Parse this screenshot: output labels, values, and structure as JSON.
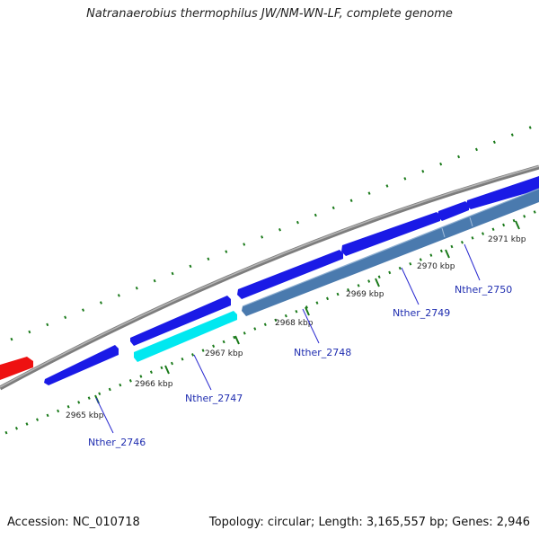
{
  "title": "Natranaerobius thermophilus JW/NM-WN-LF, complete genome",
  "footer": {
    "accession": "Accession: NC_010718",
    "summary": "Topology: circular; Length: 3,165,557 bp; Genes: 2,946"
  },
  "colors": {
    "backbone": "#8a8a8a",
    "forward_gene": "#1a1ae6",
    "reverse_gene": "#4a7aae",
    "highlight_gene": "#00e8f0",
    "other_gene": "#ee1111",
    "tick": "#1a7a1a",
    "label_line": "#2a2ad0"
  },
  "scale_labels": [
    "2965 kbp",
    "2966 kbp",
    "2967 kbp",
    "2968 kbp",
    "2969 kbp",
    "2970 kbp",
    "2971 kbp"
  ],
  "gene_labels": [
    "Nther_2746",
    "Nther_2747",
    "Nther_2748",
    "Nther_2749",
    "Nther_2750"
  ]
}
